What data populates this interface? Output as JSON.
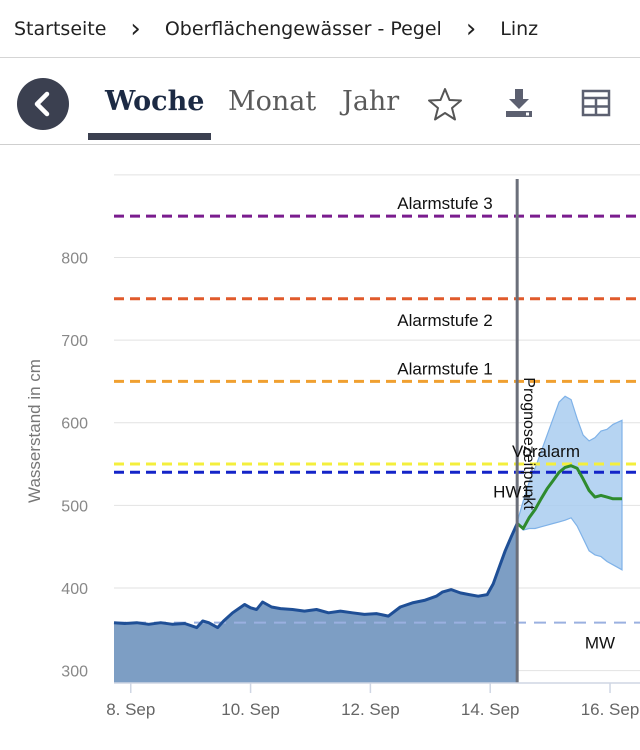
{
  "breadcrumb": {
    "items": [
      "Startseite",
      "Oberflächengewässer - Pegel",
      "Linz"
    ],
    "separator": "›"
  },
  "tabs": {
    "items": [
      {
        "label": "Woche",
        "active": true
      },
      {
        "label": "Monat",
        "active": false
      },
      {
        "label": "Jahr",
        "active": false
      }
    ]
  },
  "icons": {
    "back": "chevron-left-icon",
    "favorite": "star-icon",
    "download": "download-icon",
    "table": "grid-icon"
  },
  "colors": {
    "accent": "#3b4050",
    "observed_line": "#1f4f96",
    "observed_fill": "#7d9ec4",
    "forecast_line": "#2e8b2e",
    "forecast_band": "#a9cdf0",
    "alarm3": "#7a1c8e",
    "alarm2": "#e05a2b",
    "alarm1": "#f0a030",
    "voralarm": "#f4ef3c",
    "hw1": "#1424c8",
    "mw": "#9ab0e0"
  },
  "chart_data": {
    "type": "area",
    "ylabel": "Wasserstand in cm",
    "xlabel": "",
    "ylim": [
      285,
      895
    ],
    "xlim": [
      7.72,
      16.2
    ],
    "x_ticks": [
      {
        "value": 8,
        "label": "8. Sep"
      },
      {
        "value": 10,
        "label": "10. Sep"
      },
      {
        "value": 12,
        "label": "12. Sep"
      },
      {
        "value": 14,
        "label": "14. Sep"
      },
      {
        "value": 16,
        "label": "16. Sep"
      }
    ],
    "y_ticks": [
      300,
      400,
      500,
      600,
      700,
      800
    ],
    "forecast_time": {
      "x": 14.45,
      "label": "Prognosezeitpunkt"
    },
    "thresholds": [
      {
        "name": "Alarmstufe 3",
        "value": 850,
        "color": "#7a1c8e"
      },
      {
        "name": "Alarmstufe 2",
        "value": 750,
        "color": "#e05a2b"
      },
      {
        "name": "Alarmstufe 1",
        "value": 650,
        "color": "#f0a030"
      },
      {
        "name": "Voralarm",
        "value": 550,
        "color": "#f4ef3c"
      },
      {
        "name": "HW1",
        "value": 540,
        "color": "#1424c8"
      },
      {
        "name": "MW",
        "value": 358,
        "color": "#9ab0e0"
      }
    ],
    "series": [
      {
        "role": "observed",
        "x": [
          7.72,
          7.9,
          8.1,
          8.3,
          8.5,
          8.7,
          8.9,
          9.1,
          9.2,
          9.3,
          9.45,
          9.55,
          9.7,
          9.9,
          10.0,
          10.1,
          10.2,
          10.35,
          10.5,
          10.7,
          10.9,
          11.1,
          11.3,
          11.5,
          11.7,
          11.9,
          12.1,
          12.3,
          12.5,
          12.7,
          12.9,
          13.1,
          13.2,
          13.35,
          13.5,
          13.65,
          13.8,
          13.95,
          14.05,
          14.15,
          14.25,
          14.35,
          14.45
        ],
        "y": [
          358,
          357,
          358,
          356,
          358,
          356,
          357,
          352,
          360,
          358,
          352,
          360,
          370,
          380,
          376,
          374,
          383,
          377,
          375,
          374,
          372,
          374,
          370,
          372,
          370,
          368,
          369,
          366,
          377,
          382,
          385,
          390,
          395,
          398,
          394,
          392,
          390,
          392,
          405,
          425,
          445,
          462,
          478
        ]
      },
      {
        "role": "forecast",
        "x": [
          14.45,
          14.55,
          14.65,
          14.75,
          14.85,
          14.95,
          15.05,
          15.15,
          15.25,
          15.35,
          15.45,
          15.55,
          15.65,
          15.75,
          15.85,
          15.95,
          16.05,
          16.2
        ],
        "y": [
          478,
          472,
          485,
          495,
          508,
          520,
          530,
          540,
          546,
          548,
          545,
          532,
          518,
          510,
          512,
          510,
          508,
          508
        ]
      },
      {
        "role": "forecast_upper",
        "x": [
          14.45,
          14.55,
          14.65,
          14.75,
          14.85,
          14.95,
          15.05,
          15.15,
          15.25,
          15.35,
          15.45,
          15.55,
          15.65,
          15.75,
          15.85,
          15.95,
          16.05,
          16.2
        ],
        "y": [
          480,
          505,
          528,
          545,
          565,
          585,
          605,
          625,
          632,
          628,
          605,
          585,
          578,
          582,
          590,
          592,
          598,
          603
        ]
      },
      {
        "role": "forecast_lower",
        "x": [
          14.45,
          14.55,
          14.65,
          14.75,
          14.85,
          14.95,
          15.05,
          15.15,
          15.25,
          15.35,
          15.45,
          15.55,
          15.65,
          15.75,
          15.85,
          15.95,
          16.05,
          16.2
        ],
        "y": [
          478,
          470,
          472,
          472,
          474,
          476,
          478,
          480,
          482,
          485,
          475,
          460,
          445,
          440,
          438,
          432,
          428,
          422
        ]
      }
    ]
  }
}
